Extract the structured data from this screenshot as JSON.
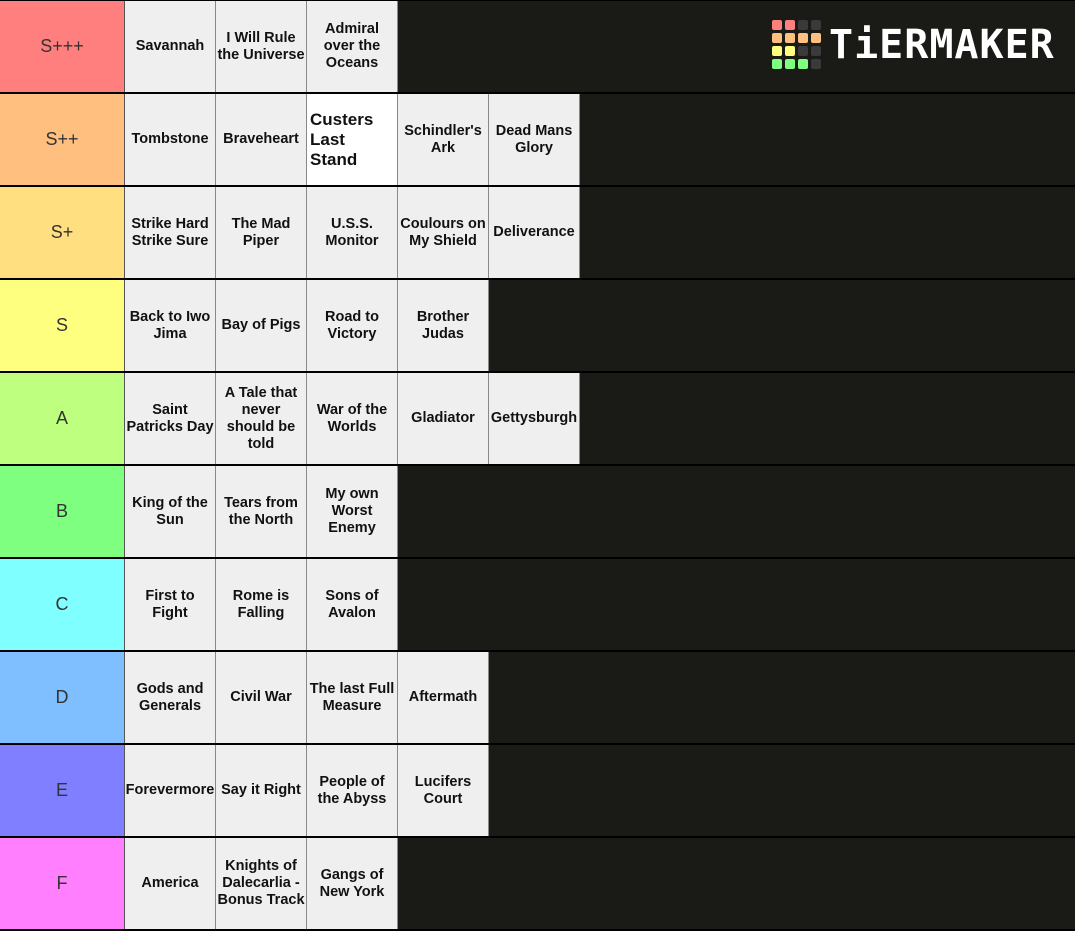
{
  "logo": {
    "text": "TiERMAKER",
    "grid_colors": [
      "#ff7f7f",
      "#ff7f7f",
      "#3a3a3a",
      "#3a3a3a",
      "#ffbf7f",
      "#ffbf7f",
      "#ffbf7f",
      "#ffbf7f",
      "#ffff7f",
      "#ffff7f",
      "#3a3a3a",
      "#3a3a3a",
      "#7fff7f",
      "#7fff7f",
      "#7fff7f",
      "#3a3a3a"
    ]
  },
  "tiers": [
    {
      "label": "S+++",
      "color": "#ff7f7f",
      "items": [
        "Savannah",
        "I Will Rule the Universe",
        "Admiral over the Oceans"
      ]
    },
    {
      "label": "S++",
      "color": "#ffbf7f",
      "items": [
        "Tombstone",
        "Braveheart",
        "Custers Last Stand",
        "Schindler's Ark",
        "Dead Mans Glory"
      ]
    },
    {
      "label": "S+",
      "color": "#ffdf7f",
      "items": [
        "Strike Hard Strike Sure",
        "The Mad Piper",
        "U.S.S. Monitor",
        "Coulours on My Shield",
        "Deliverance"
      ]
    },
    {
      "label": "S",
      "color": "#ffff7f",
      "items": [
        "Back to Iwo Jima",
        "Bay of Pigs",
        "Road to Victory",
        "Brother Judas"
      ]
    },
    {
      "label": "A",
      "color": "#bfff7f",
      "items": [
        "Saint Patricks Day",
        "A Tale that never should be told",
        "War of the Worlds",
        "Gladiator",
        "Gettysburgh"
      ]
    },
    {
      "label": "B",
      "color": "#7fff7f",
      "items": [
        "King of the Sun",
        "Tears from the North",
        "My own Worst Enemy"
      ]
    },
    {
      "label": "C",
      "color": "#7fffff",
      "items": [
        "First to Fight",
        "Rome is Falling",
        "Sons of Avalon"
      ]
    },
    {
      "label": "D",
      "color": "#7fbfff",
      "items": [
        "Gods and Generals",
        "Civil War",
        "The last Full Measure",
        "Aftermath"
      ]
    },
    {
      "label": "E",
      "color": "#7f7fff",
      "items": [
        "Forevermore",
        "Say it Right",
        "People of the Abyss",
        "Lucifers Court"
      ]
    },
    {
      "label": "F",
      "color": "#ff7fff",
      "items": [
        "America",
        "Knights of Dalecarlia - Bonus Track",
        "Gangs of New York"
      ]
    }
  ],
  "highlighted_item": "Custers Last Stand"
}
